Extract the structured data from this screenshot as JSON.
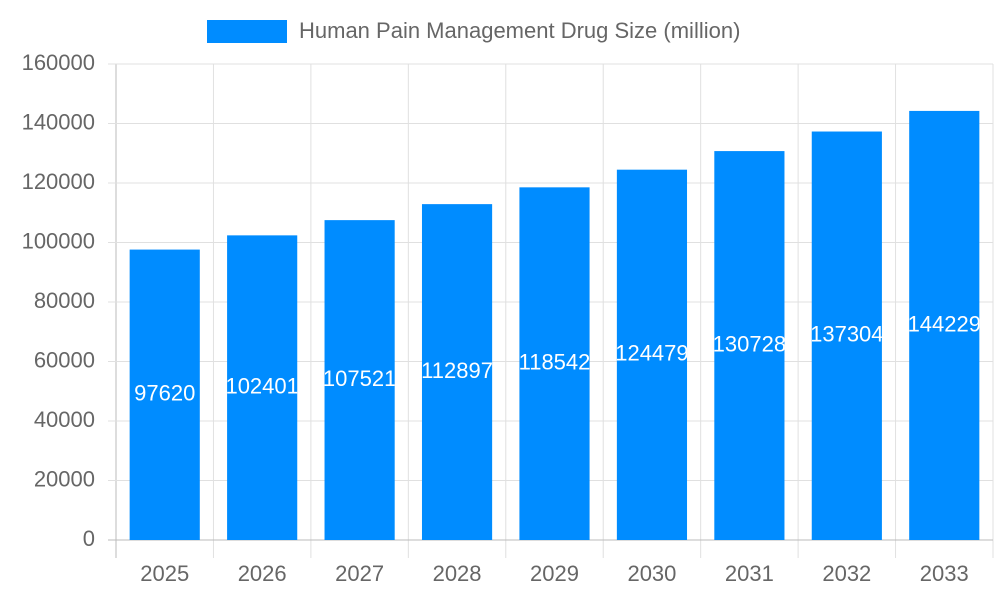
{
  "chart_data": {
    "type": "bar",
    "categories": [
      "2025",
      "2026",
      "2027",
      "2028",
      "2029",
      "2030",
      "2031",
      "2032",
      "2033"
    ],
    "series": [
      {
        "name": "Human Pain Management Drug Size (million)",
        "color": "#008cff",
        "values": [
          97620,
          102401,
          107521,
          112897,
          118542,
          124479,
          130728,
          137304,
          144229
        ]
      }
    ],
    "ylim": [
      0,
      160000
    ],
    "yticks": [
      0,
      20000,
      40000,
      60000,
      80000,
      100000,
      120000,
      140000,
      160000
    ],
    "grid": true
  }
}
